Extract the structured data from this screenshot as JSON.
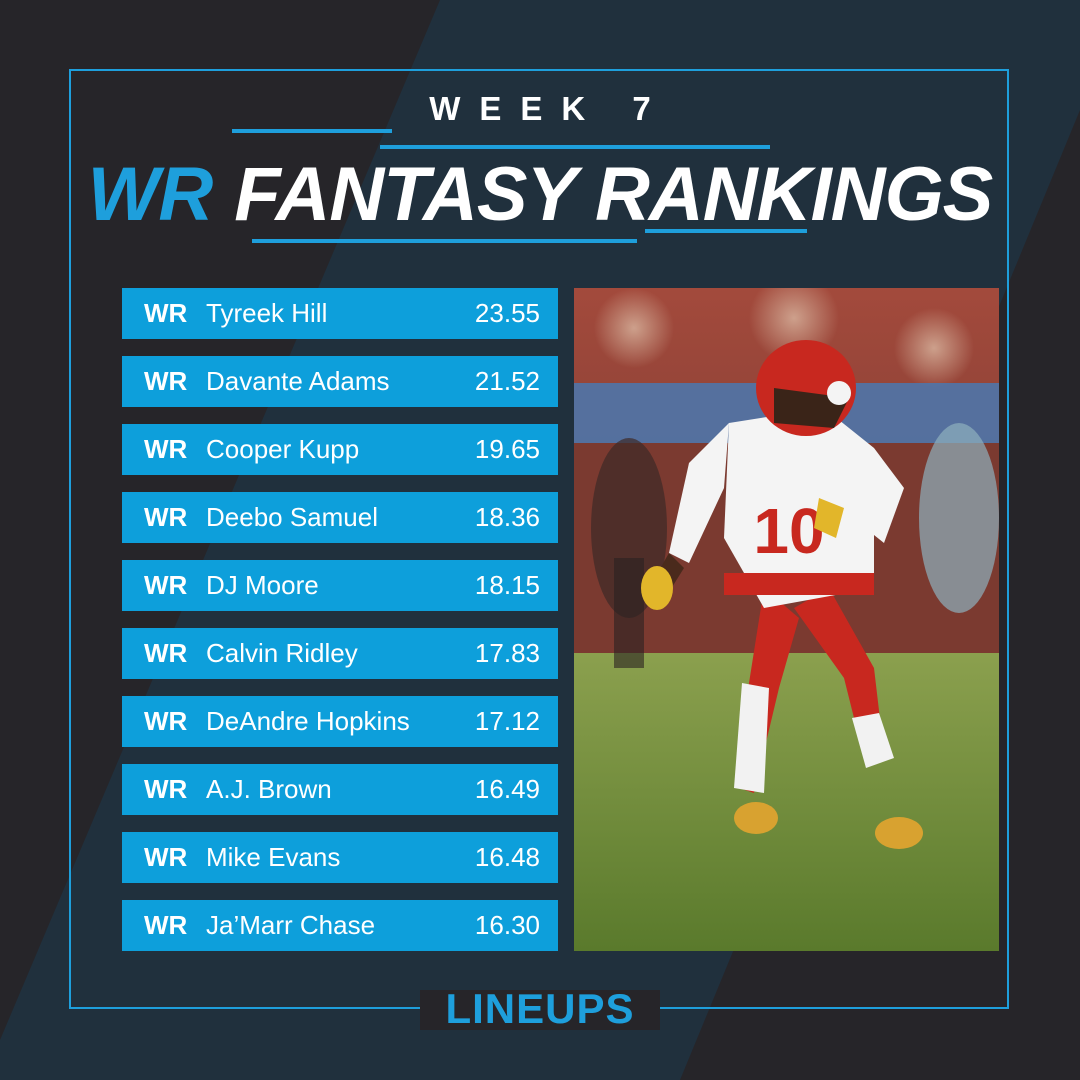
{
  "header": {
    "week": "WEEK 7",
    "title_accent": "WR",
    "title_main": "FANTASY RANKINGS"
  },
  "rankings": [
    {
      "pos": "WR",
      "name": "Tyreek Hill",
      "points": "23.55"
    },
    {
      "pos": "WR",
      "name": "Davante Adams",
      "points": "21.52"
    },
    {
      "pos": "WR",
      "name": "Cooper Kupp",
      "points": "19.65"
    },
    {
      "pos": "WR",
      "name": "Deebo Samuel",
      "points": "18.36"
    },
    {
      "pos": "WR",
      "name": "DJ Moore",
      "points": "18.15"
    },
    {
      "pos": "WR",
      "name": "Calvin Ridley",
      "points": "17.83"
    },
    {
      "pos": "WR",
      "name": "DeAndre Hopkins",
      "points": "17.12"
    },
    {
      "pos": "WR",
      "name": "A.J. Brown",
      "points": "16.49"
    },
    {
      "pos": "WR",
      "name": "Mike Evans",
      "points": "16.48"
    },
    {
      "pos": "WR",
      "name": "Ja’Marr Chase",
      "points": "16.30"
    }
  ],
  "photo": {
    "jersey_number": "10"
  },
  "logo": "LINEUPS",
  "colors": {
    "accent": "#1e9fdc",
    "background": "#262529",
    "stripe": "#20303d",
    "row": "#0d9fdb"
  }
}
